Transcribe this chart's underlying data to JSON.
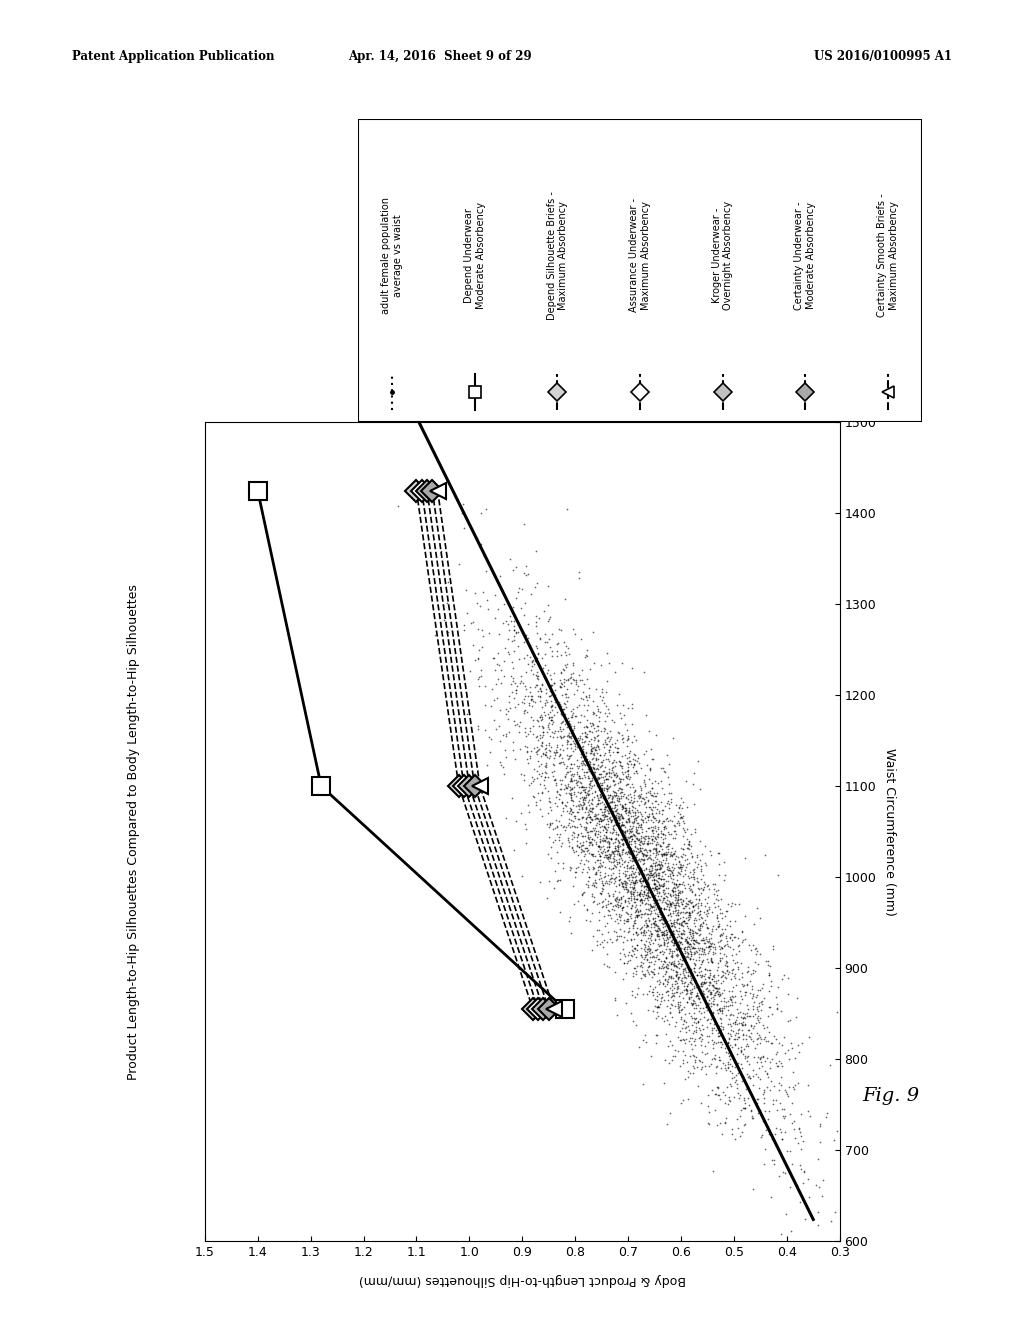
{
  "header_left": "Patent Application Publication",
  "header_center": "Apr. 14, 2016  Sheet 9 of 29",
  "header_right": "US 2016/0100995 A1",
  "fig_label": "Fig. 9",
  "plot_title": "Product Length-to-Hip Silhouettes Compared to Body Length-to-Hip Silhouettes",
  "xlabel_rotated": "Body & Product Length-to-Hip Silhouettes (mm/mm)",
  "ylabel_rotated": "Waist Circumference (mm)",
  "xlim": [
    1.5,
    0.3
  ],
  "ylim": [
    600,
    1500
  ],
  "xticks": [
    1.5,
    1.4,
    1.3,
    1.2,
    1.1,
    1.0,
    0.9,
    0.8,
    0.7,
    0.6,
    0.5,
    0.4,
    0.3
  ],
  "yticks": [
    600,
    700,
    800,
    900,
    1000,
    1100,
    1200,
    1300,
    1400,
    1500
  ],
  "scatter_seed": 42,
  "scatter_n": 5000,
  "scatter_slope": 0.00085,
  "scatter_intercept": -0.18,
  "scatter_noise": 0.065,
  "scatter_waist_mean": 1000,
  "scatter_waist_std": 130,
  "depend_underwear": {
    "sil": [
      1.4,
      1.28,
      0.82
    ],
    "waist": [
      1425,
      1100,
      855
    ]
  },
  "dashed_series": [
    {
      "sil": [
        1.1,
        1.02,
        0.88
      ],
      "waist": [
        1425,
        1100,
        855
      ],
      "marker": "D_hatch"
    },
    {
      "sil": [
        1.09,
        1.01,
        0.87
      ],
      "waist": [
        1425,
        1100,
        855
      ],
      "marker": "D_open"
    },
    {
      "sil": [
        1.08,
        1.0,
        0.86
      ],
      "waist": [
        1425,
        1100,
        855
      ],
      "marker": "D_hatch2"
    },
    {
      "sil": [
        1.07,
        0.99,
        0.85
      ],
      "waist": [
        1425,
        1100,
        855
      ],
      "marker": "D_hatch3"
    },
    {
      "sil": [
        1.06,
        0.98,
        0.84
      ],
      "waist": [
        1425,
        1100,
        855
      ],
      "marker": "arr_left"
    }
  ],
  "legend_texts": [
    "adult female population\naverage vs waist",
    "Depend Underwear\nModerate Absorbency",
    "Depend Silhouette Briefs -\nMaximum Absorbency",
    "Assurance Underwear -\nMaximum Absorbency",
    "Kroger Underwear -\nOvernight Absorbency",
    "Certainty Underwear -\nModerate Absorbency",
    "Certainty Smooth Briefs -\nMaximum Absorbency"
  ]
}
